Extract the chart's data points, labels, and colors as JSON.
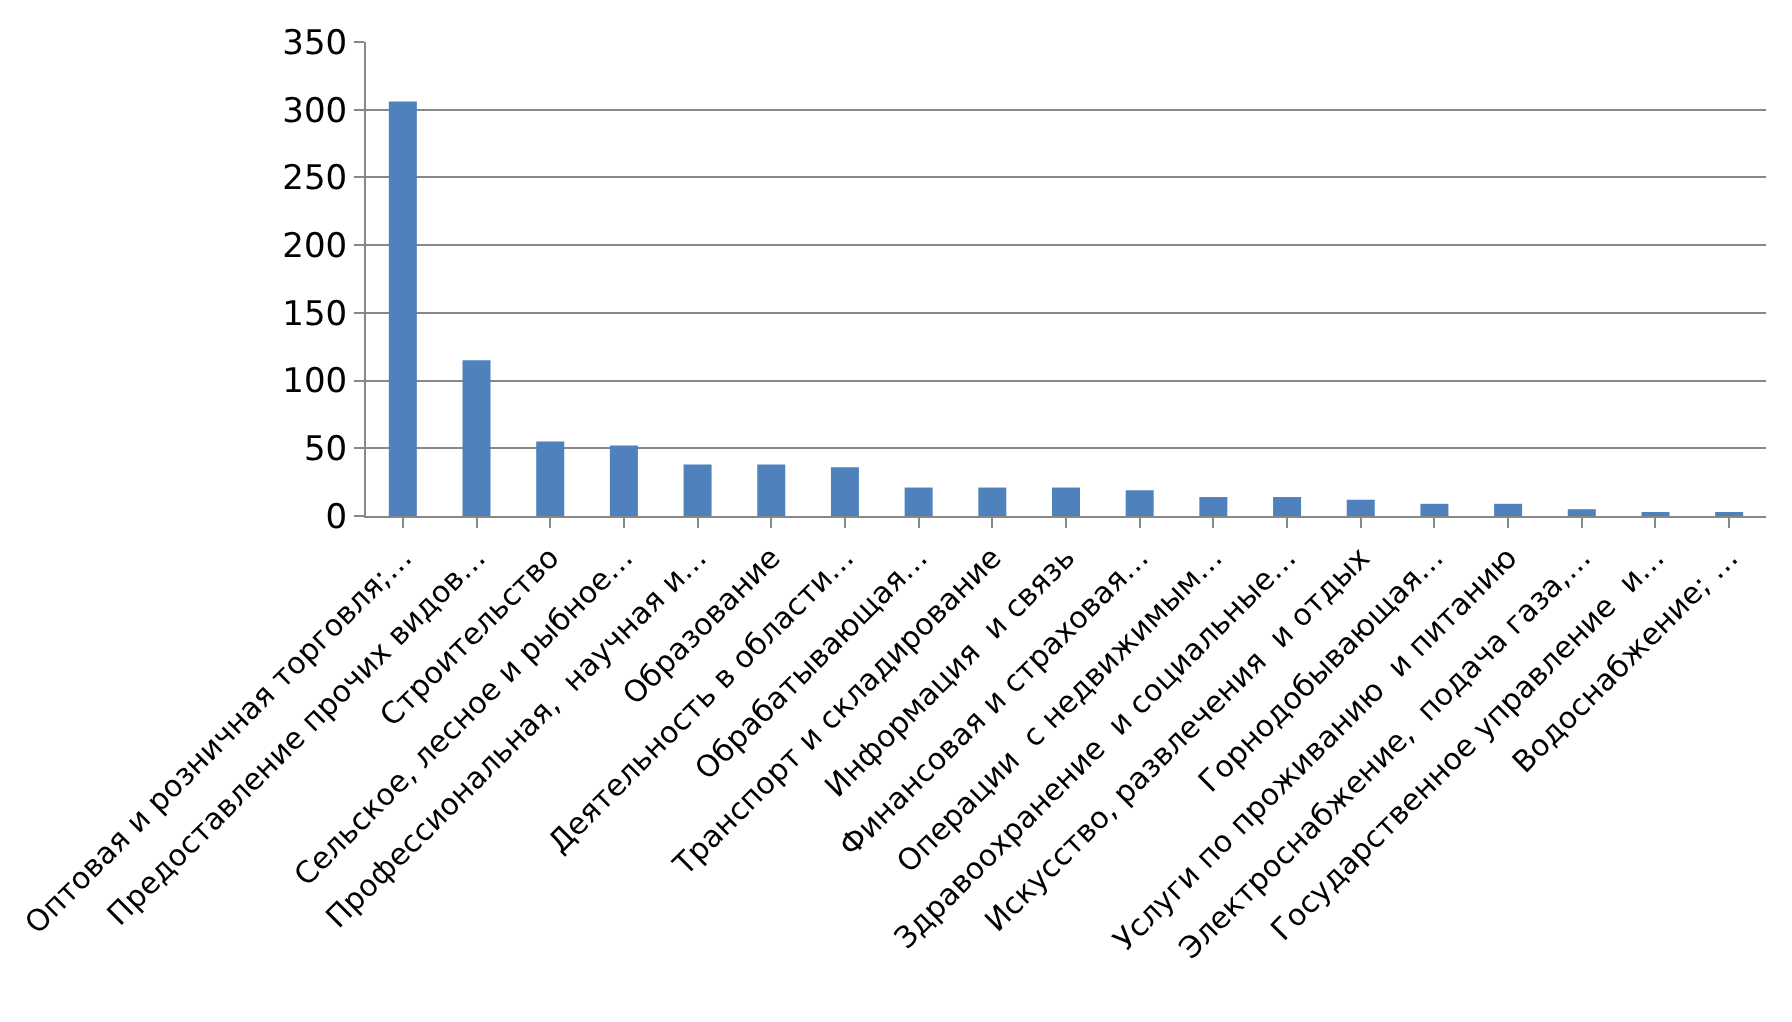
{
  "chart_data": {
    "type": "bar",
    "categories": [
      "Оптовая и розничная торговля;…",
      "Предоставление прочих видов…",
      "Строительство",
      "Сельское, лесное и рыбное…",
      "Профессиональная,  научная и…",
      "Образование",
      "Деятельность в области…",
      "Обрабатывающая…",
      "Транспорт и складирование",
      "Информация  и связь",
      "Финансовая и страховая…",
      "Операции  с недвижимым…",
      "Здравоохранение  и социальные…",
      "Искусство, развлечения  и отдых",
      "Горнодобывающая…",
      "Услуги по проживанию  и питанию",
      "Электроснабжение,  подача газа,…",
      "Государственное управление  и…",
      "Водоснабжение; …"
    ],
    "values": [
      306,
      115,
      55,
      52,
      38,
      38,
      36,
      21,
      21,
      21,
      19,
      14,
      14,
      12,
      9,
      9,
      5,
      2,
      2
    ],
    "color": "#4f81bd",
    "ylim": [
      0,
      350
    ],
    "yticks": [
      0,
      50,
      100,
      150,
      200,
      250,
      300,
      350
    ],
    "grid": "y",
    "legend": false
  }
}
